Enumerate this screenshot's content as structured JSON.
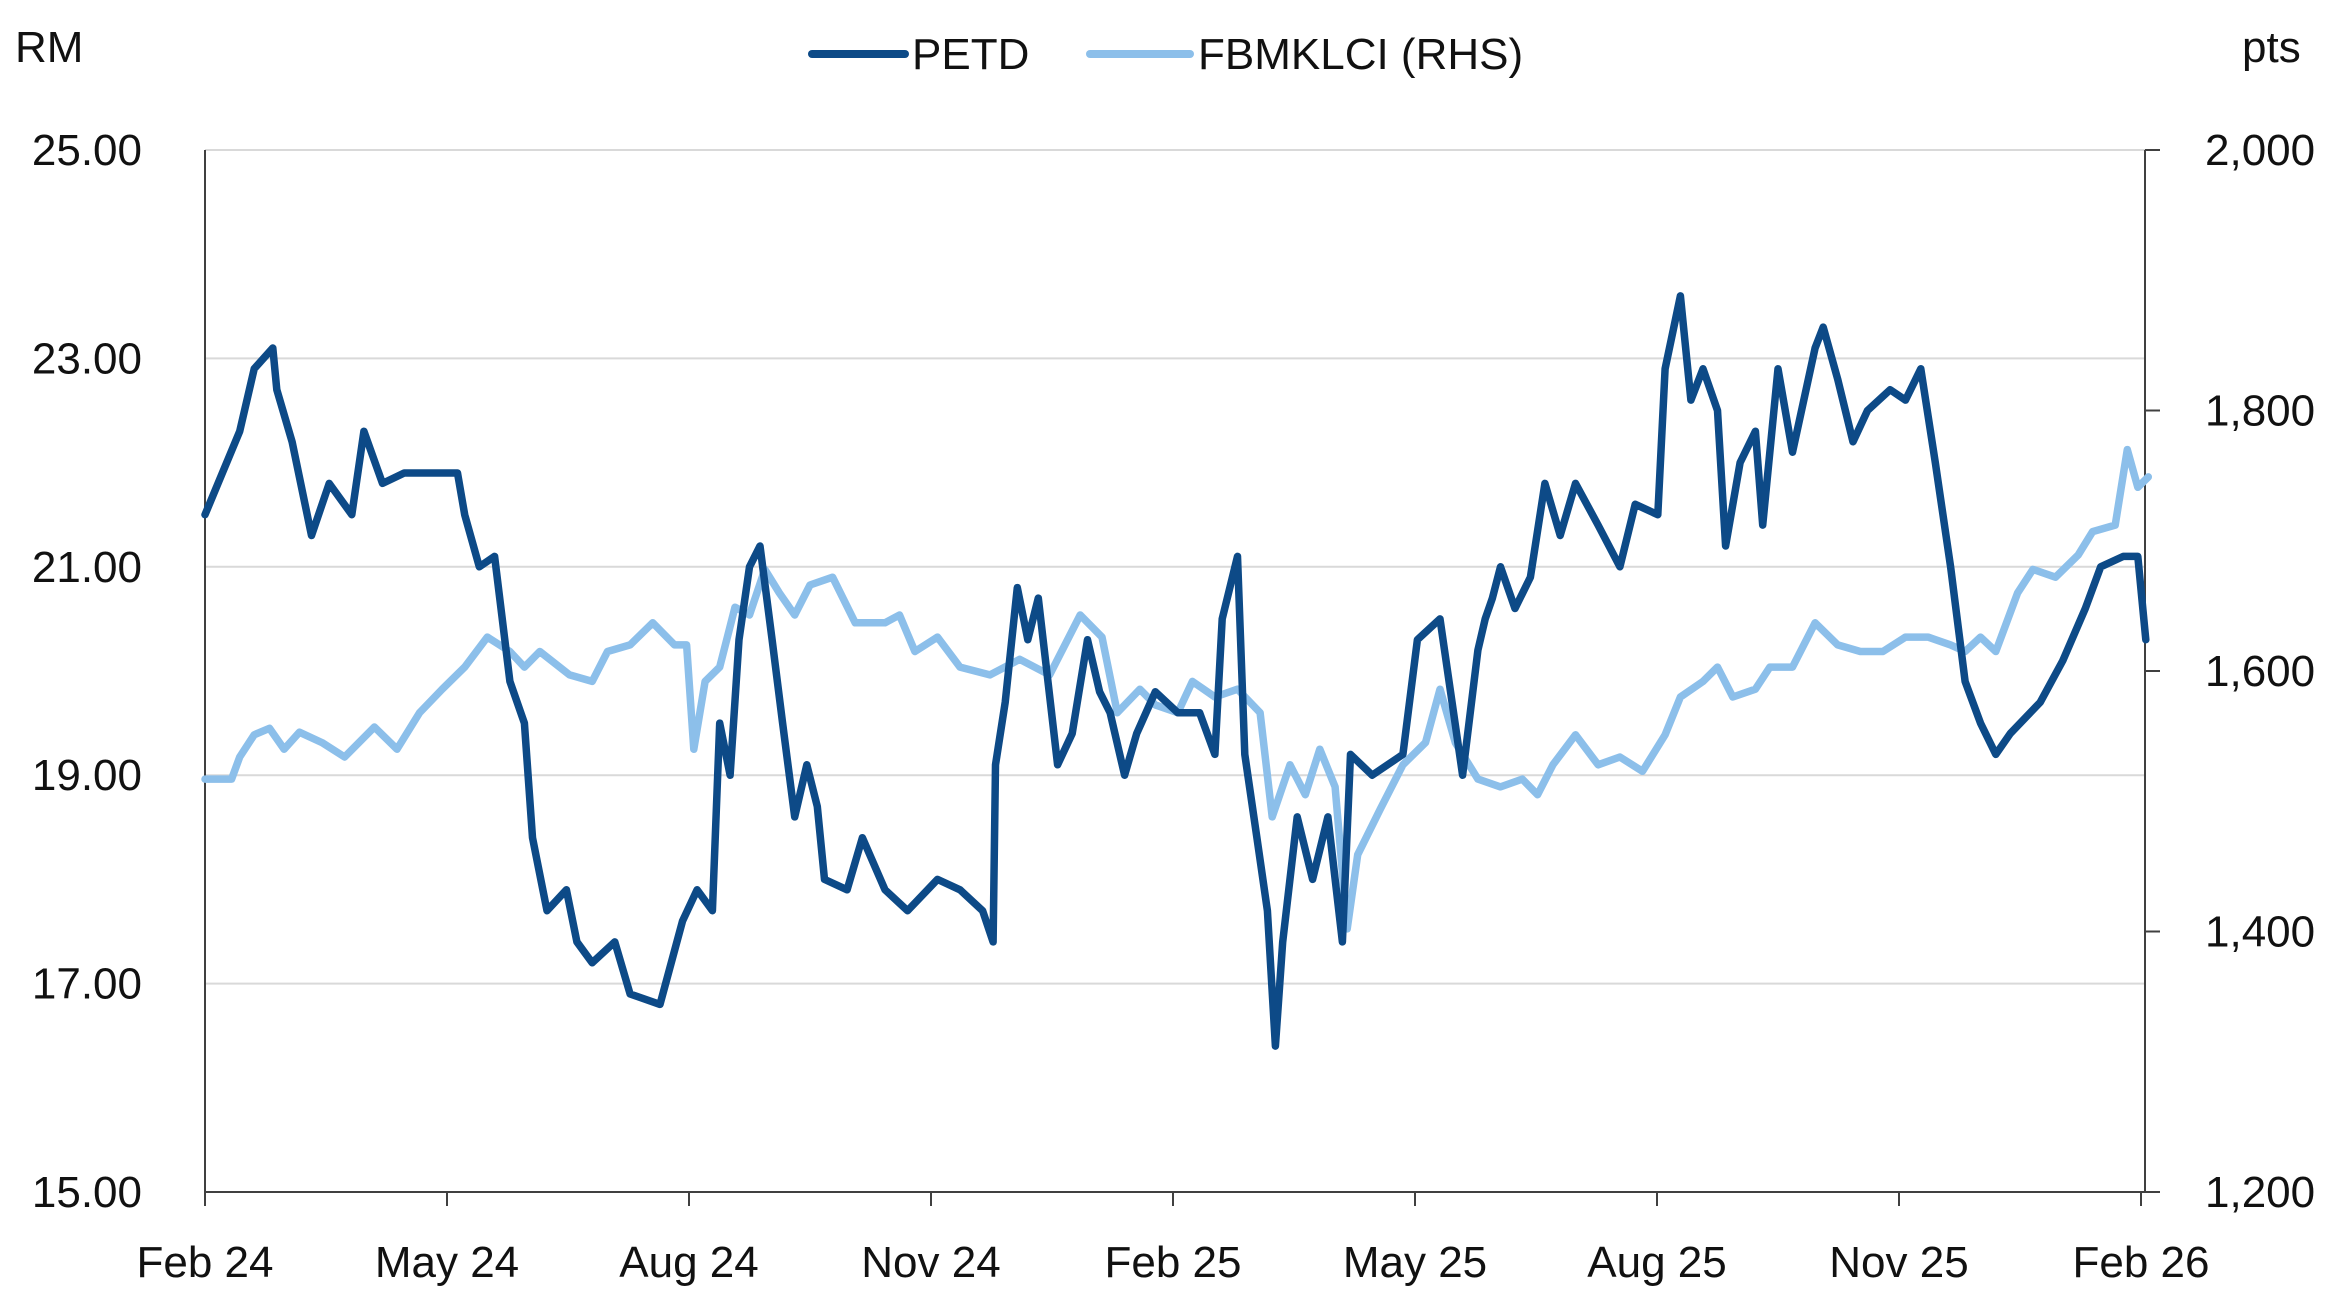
{
  "chart_data": {
    "type": "line",
    "title": "",
    "left_axis": {
      "label": "RM",
      "ylim": [
        15,
        25
      ],
      "ticks": [
        "15.00",
        "17.00",
        "19.00",
        "21.00",
        "23.00",
        "25.00"
      ],
      "tick_values": [
        15,
        17,
        19,
        21,
        23,
        25
      ]
    },
    "right_axis": {
      "label": "pts",
      "ylim": [
        1200,
        2000
      ],
      "ticks": [
        "1,200",
        "1,400",
        "1,600",
        "1,800",
        "2,000"
      ],
      "tick_values": [
        1200,
        1400,
        1600,
        1800,
        2000
      ]
    },
    "x_axis": {
      "unit": "months since Feb 24",
      "xlim": [
        0,
        24
      ],
      "ticks": [
        "Feb 24",
        "May 24",
        "Aug 24",
        "Nov 24",
        "Feb 25",
        "May 25",
        "Aug 25",
        "Nov 25",
        "Feb 26"
      ],
      "tick_values": [
        0,
        3,
        6,
        9,
        12,
        15,
        18,
        21,
        24
      ]
    },
    "grid": "horizontal",
    "legend_position": "top-center",
    "colors": {
      "petd": "#0D4A87",
      "klci": "#8CBFEA",
      "grid": "#D9D9D9",
      "axis": "#404040"
    },
    "series": [
      {
        "name": "PETD",
        "axis": "left",
        "points": [
          [
            0,
            21.5
          ],
          [
            0.43,
            22.3
          ],
          [
            0.61,
            22.9
          ],
          [
            0.84,
            23.1
          ],
          [
            0.89,
            22.7
          ],
          [
            1.08,
            22.2
          ],
          [
            1.32,
            21.3
          ],
          [
            1.54,
            21.8
          ],
          [
            1.82,
            21.5
          ],
          [
            1.97,
            22.3
          ],
          [
            2.2,
            21.8
          ],
          [
            2.47,
            21.9
          ],
          [
            2.85,
            21.9
          ],
          [
            3.13,
            21.9
          ],
          [
            3.22,
            21.5
          ],
          [
            3.4,
            21.0
          ],
          [
            3.59,
            21.1
          ],
          [
            3.78,
            19.9
          ],
          [
            3.96,
            19.5
          ],
          [
            4.06,
            18.4
          ],
          [
            4.24,
            17.7
          ],
          [
            4.48,
            17.9
          ],
          [
            4.61,
            17.4
          ],
          [
            4.8,
            17.2
          ],
          [
            5.08,
            17.4
          ],
          [
            5.27,
            16.9
          ],
          [
            5.64,
            16.8
          ],
          [
            5.92,
            17.6
          ],
          [
            6.1,
            17.9
          ],
          [
            6.29,
            17.7
          ],
          [
            6.38,
            19.5
          ],
          [
            6.51,
            19.0
          ],
          [
            6.62,
            20.3
          ],
          [
            6.75,
            21.0
          ],
          [
            6.88,
            21.2
          ],
          [
            7.03,
            20.3
          ],
          [
            7.16,
            19.5
          ],
          [
            7.31,
            18.6
          ],
          [
            7.46,
            19.1
          ],
          [
            7.59,
            18.7
          ],
          [
            7.68,
            18.0
          ],
          [
            7.96,
            17.9
          ],
          [
            8.15,
            18.4
          ],
          [
            8.43,
            17.9
          ],
          [
            8.71,
            17.7
          ],
          [
            9.08,
            18.0
          ],
          [
            9.36,
            17.9
          ],
          [
            9.64,
            17.7
          ],
          [
            9.77,
            17.4
          ],
          [
            9.8,
            19.1
          ],
          [
            9.92,
            19.7
          ],
          [
            10.07,
            20.8
          ],
          [
            10.2,
            20.3
          ],
          [
            10.33,
            20.7
          ],
          [
            10.57,
            19.1
          ],
          [
            10.75,
            19.4
          ],
          [
            10.94,
            20.3
          ],
          [
            11.09,
            19.8
          ],
          [
            11.22,
            19.6
          ],
          [
            11.4,
            19.0
          ],
          [
            11.55,
            19.4
          ],
          [
            11.78,
            19.8
          ],
          [
            12.06,
            19.6
          ],
          [
            12.33,
            19.6
          ],
          [
            12.52,
            19.2
          ],
          [
            12.61,
            20.5
          ],
          [
            12.8,
            21.1
          ],
          [
            12.89,
            19.2
          ],
          [
            13.04,
            18.4
          ],
          [
            13.17,
            17.7
          ],
          [
            13.27,
            16.4
          ],
          [
            13.36,
            17.4
          ],
          [
            13.54,
            18.6
          ],
          [
            13.73,
            18.0
          ],
          [
            13.92,
            18.6
          ],
          [
            14.1,
            17.4
          ],
          [
            14.2,
            19.2
          ],
          [
            14.47,
            19.0
          ],
          [
            14.85,
            19.2
          ],
          [
            15.03,
            20.3
          ],
          [
            15.31,
            20.5
          ],
          [
            15.59,
            19.0
          ],
          [
            15.78,
            20.2
          ],
          [
            15.87,
            20.5
          ],
          [
            15.96,
            20.7
          ],
          [
            16.06,
            21.0
          ],
          [
            16.24,
            20.6
          ],
          [
            16.43,
            20.9
          ],
          [
            16.61,
            21.8
          ],
          [
            16.8,
            21.3
          ],
          [
            16.99,
            21.8
          ],
          [
            17.27,
            21.4
          ],
          [
            17.54,
            21.0
          ],
          [
            17.73,
            21.6
          ],
          [
            18.01,
            21.5
          ],
          [
            18.1,
            22.9
          ],
          [
            18.29,
            23.6
          ],
          [
            18.42,
            22.6
          ],
          [
            18.57,
            22.9
          ],
          [
            18.75,
            22.5
          ],
          [
            18.85,
            21.2
          ],
          [
            19.03,
            22.0
          ],
          [
            19.22,
            22.3
          ],
          [
            19.31,
            21.4
          ],
          [
            19.5,
            22.9
          ],
          [
            19.68,
            22.1
          ],
          [
            19.96,
            23.1
          ],
          [
            20.06,
            23.3
          ],
          [
            20.24,
            22.8
          ],
          [
            20.43,
            22.2
          ],
          [
            20.61,
            22.5
          ],
          [
            20.89,
            22.7
          ],
          [
            21.08,
            22.6
          ],
          [
            21.27,
            22.9
          ],
          [
            21.45,
            22.0
          ],
          [
            21.64,
            21.0
          ],
          [
            21.82,
            19.9
          ],
          [
            22.01,
            19.5
          ],
          [
            22.2,
            19.2
          ],
          [
            22.38,
            19.4
          ],
          [
            22.75,
            19.7
          ],
          [
            23.03,
            20.1
          ],
          [
            23.31,
            20.6
          ],
          [
            23.5,
            21.0
          ],
          [
            23.78,
            21.1
          ],
          [
            23.96,
            21.1
          ],
          [
            24.06,
            20.3
          ]
        ]
      },
      {
        "name": "FBMKLCI (RHS)",
        "axis": "right",
        "points": [
          [
            0,
            1517
          ],
          [
            0.33,
            1517
          ],
          [
            0.43,
            1534
          ],
          [
            0.61,
            1551
          ],
          [
            0.8,
            1556
          ],
          [
            0.98,
            1540
          ],
          [
            1.17,
            1553
          ],
          [
            1.45,
            1545
          ],
          [
            1.73,
            1534
          ],
          [
            2.1,
            1557
          ],
          [
            2.38,
            1540
          ],
          [
            2.66,
            1568
          ],
          [
            2.94,
            1586
          ],
          [
            3.22,
            1603
          ],
          [
            3.5,
            1626
          ],
          [
            3.78,
            1615
          ],
          [
            3.96,
            1603
          ],
          [
            4.15,
            1615
          ],
          [
            4.52,
            1597
          ],
          [
            4.8,
            1592
          ],
          [
            4.99,
            1615
          ],
          [
            5.27,
            1620
          ],
          [
            5.55,
            1637
          ],
          [
            5.82,
            1620
          ],
          [
            5.97,
            1620
          ],
          [
            6.06,
            1540
          ],
          [
            6.2,
            1592
          ],
          [
            6.38,
            1603
          ],
          [
            6.57,
            1649
          ],
          [
            6.75,
            1643
          ],
          [
            6.94,
            1678
          ],
          [
            7.12,
            1660
          ],
          [
            7.31,
            1643
          ],
          [
            7.5,
            1666
          ],
          [
            7.78,
            1672
          ],
          [
            8.06,
            1637
          ],
          [
            8.43,
            1637
          ],
          [
            8.61,
            1643
          ],
          [
            8.8,
            1615
          ],
          [
            9.08,
            1626
          ],
          [
            9.36,
            1603
          ],
          [
            9.73,
            1597
          ],
          [
            10.1,
            1609
          ],
          [
            10.47,
            1597
          ],
          [
            10.85,
            1643
          ],
          [
            11.12,
            1626
          ],
          [
            11.31,
            1568
          ],
          [
            11.59,
            1586
          ],
          [
            11.78,
            1574
          ],
          [
            12.06,
            1568
          ],
          [
            12.24,
            1592
          ],
          [
            12.52,
            1580
          ],
          [
            12.8,
            1586
          ],
          [
            13.08,
            1568
          ],
          [
            13.23,
            1488
          ],
          [
            13.45,
            1528
          ],
          [
            13.64,
            1505
          ],
          [
            13.82,
            1540
          ],
          [
            14.01,
            1511
          ],
          [
            14.16,
            1402
          ],
          [
            14.29,
            1459
          ],
          [
            14.57,
            1494
          ],
          [
            14.85,
            1528
          ],
          [
            15.13,
            1545
          ],
          [
            15.31,
            1586
          ],
          [
            15.5,
            1545
          ],
          [
            15.78,
            1517
          ],
          [
            16.06,
            1511
          ],
          [
            16.33,
            1517
          ],
          [
            16.52,
            1505
          ],
          [
            16.71,
            1528
          ],
          [
            16.99,
            1551
          ],
          [
            17.27,
            1528
          ],
          [
            17.54,
            1534
          ],
          [
            17.82,
            1523
          ],
          [
            18.1,
            1551
          ],
          [
            18.29,
            1580
          ],
          [
            18.57,
            1592
          ],
          [
            18.75,
            1603
          ],
          [
            18.94,
            1580
          ],
          [
            19.22,
            1586
          ],
          [
            19.4,
            1603
          ],
          [
            19.68,
            1603
          ],
          [
            19.96,
            1637
          ],
          [
            20.24,
            1620
          ],
          [
            20.52,
            1615
          ],
          [
            20.8,
            1615
          ],
          [
            21.08,
            1626
          ],
          [
            21.36,
            1626
          ],
          [
            21.64,
            1620
          ],
          [
            21.82,
            1615
          ],
          [
            22.01,
            1626
          ],
          [
            22.2,
            1615
          ],
          [
            22.47,
            1660
          ],
          [
            22.66,
            1678
          ],
          [
            22.94,
            1672
          ],
          [
            23.22,
            1689
          ],
          [
            23.4,
            1707
          ],
          [
            23.68,
            1712
          ],
          [
            23.83,
            1770
          ],
          [
            23.96,
            1741
          ],
          [
            24.09,
            1749
          ]
        ]
      }
    ]
  }
}
